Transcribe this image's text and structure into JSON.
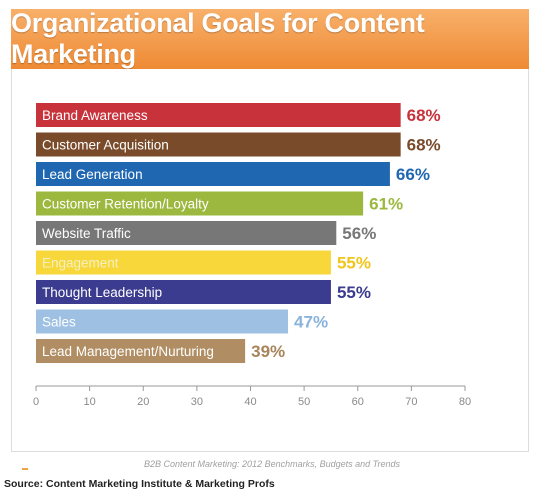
{
  "header": {
    "title": "Organizational Goals for Content Marketing"
  },
  "footer": {
    "note": "B2B Content Marketing: 2012 Benchmarks, Budgets and Trends",
    "source": "Source: Content Marketing Institute & Marketing Profs"
  },
  "colors": {
    "title_bar": "#ee8a34",
    "axis": "#999999"
  },
  "chart_data": {
    "type": "bar",
    "orientation": "horizontal",
    "title": "Organizational Goals for Content Marketing",
    "xlabel": "",
    "ylabel": "",
    "xlim": [
      0,
      80
    ],
    "x_ticks": [
      0,
      10,
      20,
      30,
      40,
      50,
      60,
      70,
      80
    ],
    "grid": false,
    "categories": [
      "Brand Awareness",
      "Customer Acquisition",
      "Lead Generation",
      "Customer Retention/Loyalty",
      "Website Traffic",
      "Engagement",
      "Thought Leadership",
      "Sales",
      "Lead Management/Nurturing"
    ],
    "values": [
      68,
      68,
      66,
      61,
      56,
      55,
      55,
      47,
      39
    ],
    "value_labels": [
      "68%",
      "68%",
      "66%",
      "61%",
      "56%",
      "55%",
      "55%",
      "47%",
      "39%"
    ],
    "colors": [
      "#c8323a",
      "#7a4b2a",
      "#1f67b1",
      "#9cb83e",
      "#777777",
      "#f7d73a",
      "#3b3b8f",
      "#9ec1e3",
      "#b08d63"
    ],
    "label_colors": [
      "#c8323a",
      "#7a4b2a",
      "#1f67b1",
      "#9cb83e",
      "#777777",
      "#f2c51a",
      "#3b3b8f",
      "#8ab3dc",
      "#a8845a"
    ],
    "category_text_colors": [
      "#ffffff",
      "#ffffff",
      "#ffffff",
      "#ffffff",
      "#ffffff",
      "#f5f0c0",
      "#ffffff",
      "#ffffff",
      "#ffffff"
    ]
  }
}
